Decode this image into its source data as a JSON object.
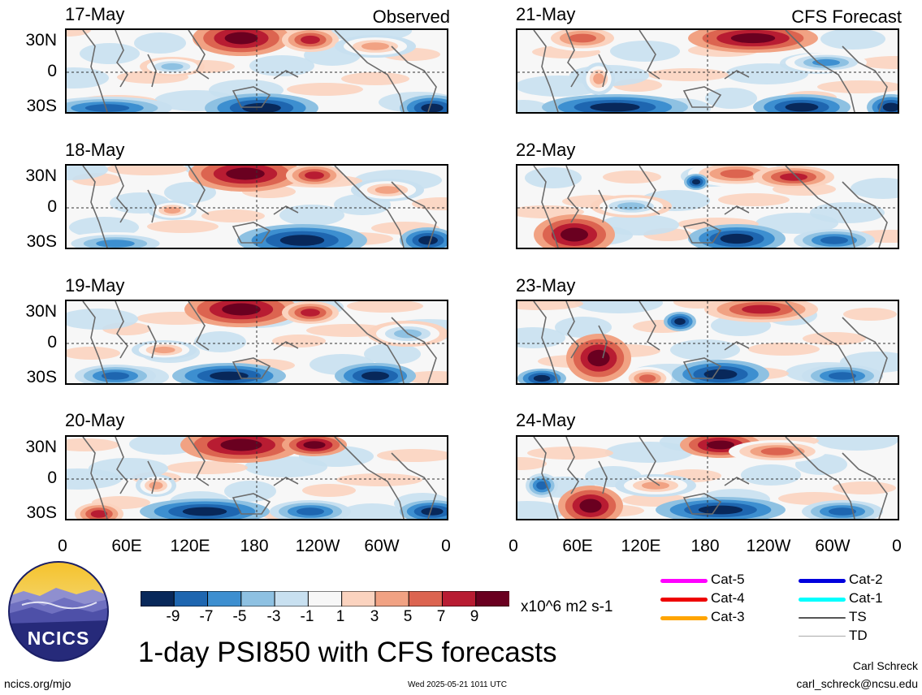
{
  "panels": [
    {
      "date": "17-May",
      "tag": "Observed"
    },
    {
      "date": "18-May",
      "tag": ""
    },
    {
      "date": "19-May",
      "tag": ""
    },
    {
      "date": "20-May",
      "tag": ""
    },
    {
      "date": "21-May",
      "tag": "CFS Forecast"
    },
    {
      "date": "22-May",
      "tag": ""
    },
    {
      "date": "23-May",
      "tag": ""
    },
    {
      "date": "24-May",
      "tag": ""
    }
  ],
  "axes": {
    "lat_labels": [
      "30N",
      "0",
      "30S"
    ],
    "lon_labels": [
      "0",
      "60E",
      "120E",
      "180",
      "120W",
      "60W",
      "0"
    ]
  },
  "colorbar": {
    "colors": [
      "#08285a",
      "#1e66b0",
      "#3d8fd0",
      "#8ec1e2",
      "#c8e0f0",
      "#f7f7f7",
      "#fbd3bf",
      "#f1a283",
      "#dc6450",
      "#b81c32",
      "#6a0020"
    ],
    "labels": [
      "-9",
      "-7",
      "-5",
      "-3",
      "-1",
      "1",
      "3",
      "5",
      "7",
      "9"
    ],
    "units": "x10^6 m2 s-1"
  },
  "tracks": [
    {
      "label": "Cat-5",
      "color": "#ff00ff"
    },
    {
      "label": "Cat-4",
      "color": "#ee0000"
    },
    {
      "label": "Cat-3",
      "color": "#ffa500"
    },
    {
      "label": "Cat-2",
      "color": "#0000dd"
    },
    {
      "label": "Cat-1",
      "color": "#00ffff"
    },
    {
      "label": "TS",
      "color": "#555555"
    },
    {
      "label": "TD",
      "color": "#aaaaaa"
    }
  ],
  "logo_text": "NCICS",
  "main_title": "1-day PSI850 with CFS forecasts",
  "footer": {
    "url": "ncics.org/mjo",
    "timestamp": "Wed 2025-05-21 1011 UTC",
    "author": "Carl Schreck",
    "email": "carl_schreck@ncsu.edu"
  }
}
